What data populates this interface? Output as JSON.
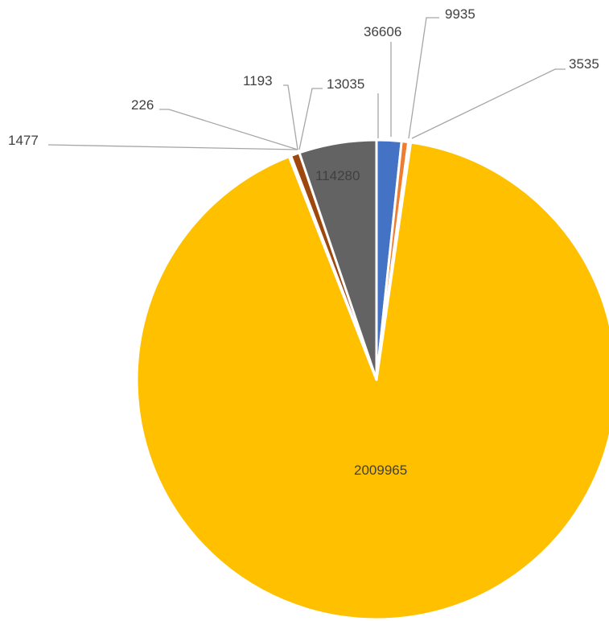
{
  "chart_data": {
    "type": "pie",
    "title": "",
    "slices": [
      {
        "value": 36606,
        "color": "#4472C4"
      },
      {
        "value": 9935,
        "color": "#ED7D31"
      },
      {
        "value": 3535,
        "color": "#A5A5A5"
      },
      {
        "value": 2009965,
        "color": "#FFC000"
      },
      {
        "value": 1477,
        "color": "#5B9BD5"
      },
      {
        "value": 226,
        "color": "#70AD47"
      },
      {
        "value": 1193,
        "color": "#264478"
      },
      {
        "value": 13035,
        "color": "#9E480E"
      },
      {
        "value": 114280,
        "color": "#636363"
      }
    ],
    "labels": [
      "36606",
      "9935",
      "3535",
      "2009965",
      "1477",
      "226",
      "1193",
      "13035",
      "114280"
    ],
    "legend": "none"
  }
}
